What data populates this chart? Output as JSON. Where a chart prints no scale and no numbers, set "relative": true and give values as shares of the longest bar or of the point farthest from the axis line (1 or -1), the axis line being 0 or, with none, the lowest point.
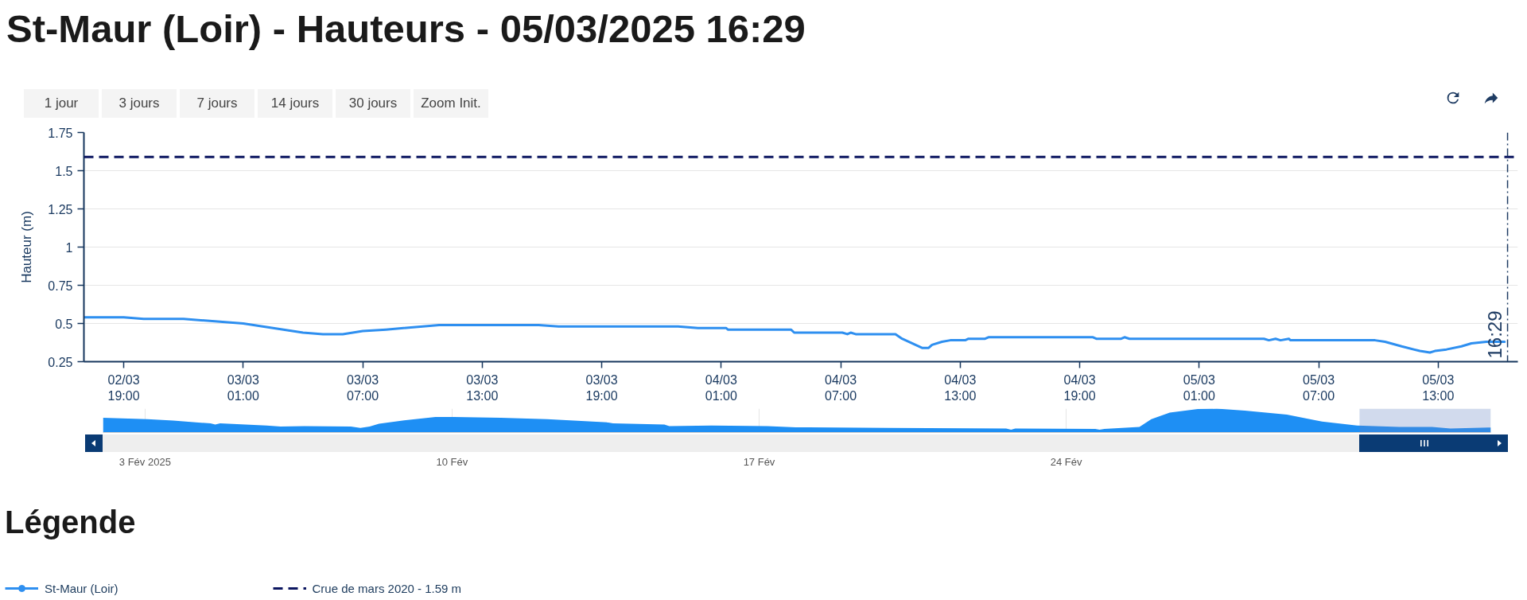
{
  "chart_data": [
    {
      "type": "line",
      "title": "St-Maur (Loir) - Hauteurs - 05/03/2025 16:29",
      "annotations": [
        "1 jour",
        "3 jours",
        "7 jours",
        "14 jours",
        "30 jours",
        "Zoom Init."
      ],
      "ylabel": "Hauteur (m)",
      "legend_title": "Légende",
      "x": [
        "2025-03-02T17:00",
        "2025-03-02T19:00",
        "2025-03-02T20:00",
        "2025-03-02T22:00",
        "2025-03-03T01:00",
        "2025-03-03T04:00",
        "2025-03-03T05:00",
        "2025-03-03T06:00",
        "2025-03-03T07:00",
        "2025-03-03T08:10",
        "2025-03-03T10:50",
        "2025-03-03T15:50",
        "2025-03-03T16:50",
        "2025-03-03T22:50",
        "2025-03-03T23:50",
        "2025-03-04T01:15",
        "2025-03-04T01:20",
        "2025-03-04T04:30",
        "2025-03-04T04:40",
        "2025-03-04T07:05",
        "2025-03-04T07:20",
        "2025-03-04T07:30",
        "2025-03-04T07:45",
        "2025-03-04T09:45",
        "2025-03-04T10:05",
        "2025-03-04T11:05",
        "2025-03-04T11:25",
        "2025-03-04T11:35",
        "2025-03-04T12:05",
        "2025-03-04T12:30",
        "2025-03-04T13:15",
        "2025-03-04T13:25",
        "2025-03-04T14:15",
        "2025-03-04T14:25",
        "2025-03-04T19:40",
        "2025-03-04T19:50",
        "2025-03-04T21:05",
        "2025-03-04T21:15",
        "2025-03-04T21:30",
        "2025-03-05T04:15",
        "2025-03-05T04:30",
        "2025-03-05T04:50",
        "2025-03-05T05:05",
        "2025-03-05T05:30",
        "2025-03-05T05:35",
        "2025-03-05T09:50",
        "2025-03-05T10:20",
        "2025-03-05T11:10",
        "2025-03-05T12:05",
        "2025-03-05T12:35",
        "2025-03-05T12:50",
        "2025-03-05T13:25",
        "2025-03-05T14:10",
        "2025-03-05T14:40",
        "2025-03-05T15:25",
        "2025-03-05T16:20"
      ],
      "series": [
        {
          "name": "St-Maur (Loir)",
          "color": "#2e8ff0",
          "values": [
            0.54,
            0.54,
            0.53,
            0.53,
            0.5,
            0.44,
            0.43,
            0.43,
            0.45,
            0.46,
            0.49,
            0.49,
            0.48,
            0.48,
            0.47,
            0.47,
            0.46,
            0.46,
            0.44,
            0.44,
            0.43,
            0.44,
            0.43,
            0.43,
            0.4,
            0.34,
            0.34,
            0.36,
            0.38,
            0.39,
            0.39,
            0.4,
            0.4,
            0.41,
            0.41,
            0.4,
            0.4,
            0.41,
            0.4,
            0.4,
            0.39,
            0.4,
            0.39,
            0.4,
            0.39,
            0.39,
            0.38,
            0.35,
            0.32,
            0.31,
            0.32,
            0.33,
            0.35,
            0.37,
            0.38,
            0.38
          ]
        }
      ],
      "xlim": [
        "2025-03-02T17:00",
        "2025-03-05T17:00"
      ],
      "xticks": [
        {
          "value": "2025-03-02T19:00",
          "label": "02/03\n19:00"
        },
        {
          "value": "2025-03-03T01:00",
          "label": "03/03\n01:00"
        },
        {
          "value": "2025-03-03T07:00",
          "label": "03/03\n07:00"
        },
        {
          "value": "2025-03-03T13:00",
          "label": "03/03\n13:00"
        },
        {
          "value": "2025-03-03T19:00",
          "label": "03/03\n19:00"
        },
        {
          "value": "2025-03-04T01:00",
          "label": "04/03\n01:00"
        },
        {
          "value": "2025-03-04T07:00",
          "label": "04/03\n07:00"
        },
        {
          "value": "2025-03-04T13:00",
          "label": "04/03\n13:00"
        },
        {
          "value": "2025-03-04T19:00",
          "label": "04/03\n19:00"
        },
        {
          "value": "2025-03-05T01:00",
          "label": "05/03\n01:00"
        },
        {
          "value": "2025-03-05T07:00",
          "label": "05/03\n07:00"
        },
        {
          "value": "2025-03-05T13:00",
          "label": "05/03\n13:00"
        }
      ],
      "ylim": [
        0.25,
        1.75
      ],
      "yticks": [
        0.25,
        0.5,
        0.75,
        1,
        1.25,
        1.5,
        1.75
      ],
      "grid": "y",
      "legend": "bottom",
      "ref_lines": [
        {
          "axis": "y",
          "value": 1.59,
          "label": "Crue de mars 2020 - 1.59 m",
          "color": "#0c1660",
          "line_style": "dashed"
        },
        {
          "axis": "x",
          "value": "2025-03-05T16:29",
          "label": "16:29",
          "color": "#1f3c63",
          "line_style": "dashdot"
        }
      ]
    },
    {
      "type": "area",
      "relative": true,
      "x": [
        "2025-02-02T01:00",
        "2025-02-03T01:20",
        "2025-02-03T15:25",
        "2025-02-04T11:50",
        "2025-02-04T14:25",
        "2025-02-04T17:05",
        "2025-02-05T18:30",
        "2025-02-06T02:10",
        "2025-02-06T15:10",
        "2025-02-07T16:35",
        "2025-02-07T21:50",
        "2025-02-08T02:55",
        "2025-02-08T08:00",
        "2025-02-08T20:55",
        "2025-02-09T14:55",
        "2025-02-10T01:00",
        "2025-02-11T02:40",
        "2025-02-12T04:05",
        "2025-02-13T13:30",
        "2025-02-13T16:05",
        "2025-02-14T20:10",
        "2025-02-14T22:50",
        "2025-02-15T21:55",
        "2025-02-17T04:35",
        "2025-02-17T20:00",
        "2025-02-19T23:05",
        "2025-02-22T15:10",
        "2025-02-22T17:50",
        "2025-02-22T20:10",
        "2025-02-24T15:55",
        "2025-02-24T18:15",
        "2025-02-24T20:55",
        "2025-02-25T16:05",
        "2025-02-25T22:35",
        "2025-02-26T08:40",
        "2025-02-27T00:00",
        "2025-02-27T10:20",
        "2025-02-28T01:45",
        "2025-03-01T00:45",
        "2025-03-01T16:05",
        "2025-03-01T20:00",
        "2025-03-02T15:10",
        "2025-03-03T14:10",
        "2025-03-04T08:10",
        "2025-03-04T18:15",
        "2025-03-05T14:55",
        "2025-03-05T16:20"
      ],
      "series": [
        {
          "color": "#1e8ff4",
          "values": [
            0.62,
            0.56,
            0.5,
            0.38,
            0.33,
            0.38,
            0.29,
            0.25,
            0.27,
            0.25,
            0.19,
            0.25,
            0.37,
            0.5,
            0.65,
            0.65,
            0.62,
            0.56,
            0.42,
            0.38,
            0.33,
            0.27,
            0.29,
            0.27,
            0.22,
            0.19,
            0.17,
            0.12,
            0.17,
            0.15,
            0.12,
            0.15,
            0.23,
            0.56,
            0.83,
            0.98,
            1,
            0.92,
            0.75,
            0.52,
            0.46,
            0.29,
            0.23,
            0.23,
            0.17,
            0.21,
            0.21
          ]
        }
      ],
      "xlim": [
        "2025-02-02T01:00",
        "2025-03-05T16:20"
      ],
      "xticks": [
        {
          "value": "2025-02-03",
          "label": "3 Fév 2025"
        },
        {
          "value": "2025-02-10",
          "label": "10 Fév"
        },
        {
          "value": "2025-02-17",
          "label": "17 Fév"
        },
        {
          "value": "2025-02-24",
          "label": "24 Fév"
        }
      ],
      "grid": "x",
      "bands": [
        {
          "axis": "x",
          "from": "2025-03-02T16:30",
          "to": "2025-03-05T16:20",
          "color": "#6685c2"
        }
      ]
    }
  ]
}
